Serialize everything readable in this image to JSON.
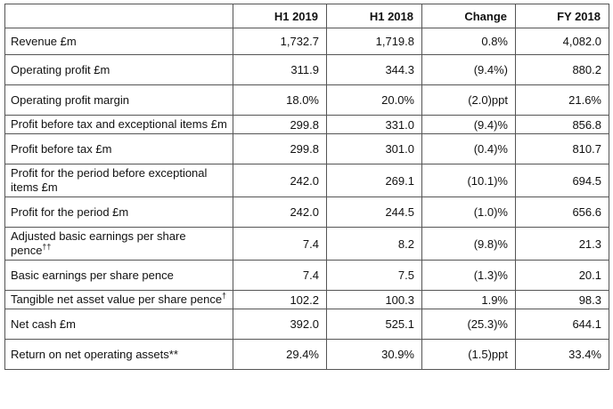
{
  "table": {
    "headers": [
      "",
      "H1 2019",
      "H1 2018",
      "Change",
      "FY 2018"
    ],
    "rows": [
      {
        "label": "Revenue £m",
        "mark": "",
        "values": [
          "1,732.7",
          "1,719.8",
          "0.8%",
          "4,082.0"
        ]
      },
      {
        "label": "Operating profit £m",
        "mark": "",
        "values": [
          "311.9",
          "344.3",
          "(9.4%)",
          "880.2"
        ]
      },
      {
        "label": "Operating profit margin",
        "mark": "",
        "values": [
          "18.0%",
          "20.0%",
          "(2.0)ppt",
          "21.6%"
        ]
      },
      {
        "label": "Profit before tax and exceptional items £m",
        "mark": "",
        "values": [
          "299.8",
          "331.0",
          "(9.4)%",
          "856.8"
        ]
      },
      {
        "label": "Profit before tax £m",
        "mark": "",
        "values": [
          "299.8",
          "301.0",
          "(0.4)%",
          "810.7"
        ]
      },
      {
        "label": "Profit for the period before exceptional items £m",
        "mark": "",
        "values": [
          "242.0",
          "269.1",
          "(10.1)%",
          "694.5"
        ]
      },
      {
        "label": "Profit for the period £m",
        "mark": "",
        "values": [
          "242.0",
          "244.5",
          "(1.0)%",
          "656.6"
        ]
      },
      {
        "label": "Adjusted basic earnings per share pence",
        "mark": "††",
        "values": [
          "7.4",
          "8.2",
          "(9.8)%",
          "21.3"
        ]
      },
      {
        "label": "Basic earnings per share pence",
        "mark": "",
        "values": [
          "7.4",
          "7.5",
          "(1.3)%",
          "20.1"
        ]
      },
      {
        "label": "Tangible net asset value per share pence",
        "mark": "†",
        "values": [
          "102.2",
          "100.3",
          "1.9%",
          "98.3"
        ]
      },
      {
        "label": "Net cash £m",
        "mark": "",
        "values": [
          "392.0",
          "525.1",
          "(25.3)%",
          "644.1"
        ]
      },
      {
        "label": "Return on net operating assets**",
        "mark": "",
        "values": [
          "29.4%",
          "30.9%",
          "(1.5)ppt",
          "33.4%"
        ]
      }
    ]
  }
}
